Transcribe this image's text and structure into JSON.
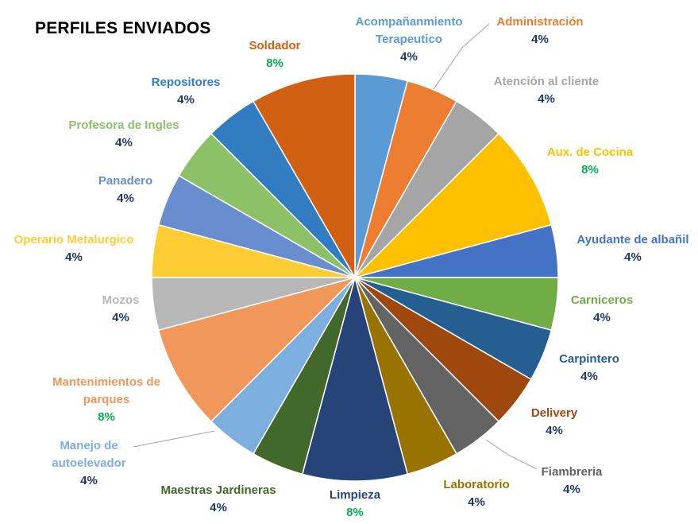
{
  "chart_data": {
    "type": "pie",
    "title": "PERFILES ENVIADOS",
    "slices": [
      {
        "label": "Acompañanmiento Terapeutico",
        "value": 4,
        "value_label": "4%",
        "color": "#5b9bd5"
      },
      {
        "label": "Administración",
        "value": 4,
        "value_label": "4%",
        "color": "#ed7d31"
      },
      {
        "label": "Atención al cliente",
        "value": 4,
        "value_label": "4%",
        "color": "#a5a5a5"
      },
      {
        "label": "Aux. de Cocina",
        "value": 8,
        "value_label": "8%",
        "color": "#ffc000"
      },
      {
        "label": "Ayudante de albañil",
        "value": 4,
        "value_label": "4%",
        "color": "#4472c4"
      },
      {
        "label": "Carniceros",
        "value": 4,
        "value_label": "4%",
        "color": "#70ad47"
      },
      {
        "label": "Carpintero",
        "value": 4,
        "value_label": "4%",
        "color": "#255e91"
      },
      {
        "label": "Delivery",
        "value": 4,
        "value_label": "4%",
        "color": "#9e480e"
      },
      {
        "label": "Fiambreria",
        "value": 4,
        "value_label": "4%",
        "color": "#636363"
      },
      {
        "label": "Laboratorio",
        "value": 4,
        "value_label": "4%",
        "color": "#997300"
      },
      {
        "label": "Limpieza",
        "value": 8,
        "value_label": "8%",
        "color": "#264478"
      },
      {
        "label": "Maestras Jardineras",
        "value": 4,
        "value_label": "4%",
        "color": "#43682b"
      },
      {
        "label": "Manejo de autoelevador",
        "value": 4,
        "value_label": "4%",
        "color": "#7cafdd"
      },
      {
        "label": "Mantenimientos de parques",
        "value": 8,
        "value_label": "8%",
        "color": "#f1975a"
      },
      {
        "label": "Mozos",
        "value": 4,
        "value_label": "4%",
        "color": "#b7b7b7"
      },
      {
        "label": "Operario Metalurgico",
        "value": 4,
        "value_label": "4%",
        "color": "#ffcd33"
      },
      {
        "label": "Panadero",
        "value": 4,
        "value_label": "4%",
        "color": "#698ed0"
      },
      {
        "label": "Profesora de Ingles",
        "value": 4,
        "value_label": "4%",
        "color": "#8cc168"
      },
      {
        "label": "Repositores",
        "value": 4,
        "value_label": "4%",
        "color": "#327dc2"
      },
      {
        "label": "Soldador",
        "value": 8,
        "value_label": "8%",
        "color": "#d26012"
      }
    ],
    "legend": "none"
  }
}
